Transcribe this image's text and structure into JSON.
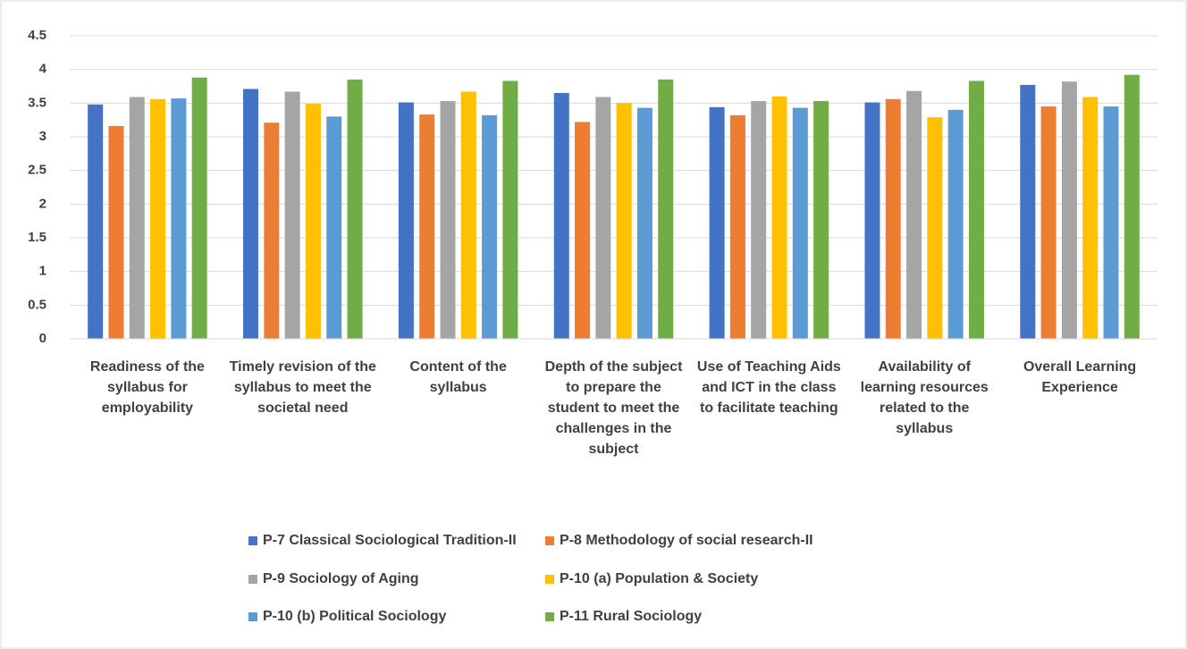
{
  "chart_data": {
    "type": "bar",
    "categories": [
      "Readiness of the syllabus for employability",
      "Timely revision of the syllabus to meet the societal need",
      "Content of the syllabus",
      "Depth of the subject to prepare the student to meet the challenges in the subject",
      "Use of Teaching Aids and ICT in the class to facilitate teaching",
      "Availability of learning resources related to the syllabus",
      "Overall Learning Experience"
    ],
    "series": [
      {
        "name": "P-7 Classical Sociological Tradition-II",
        "color": "#4472c4",
        "values": [
          3.48,
          3.71,
          3.51,
          3.65,
          3.44,
          3.51,
          3.77
        ]
      },
      {
        "name": "P-8 Methodology of social research-II",
        "color": "#ed7d31",
        "values": [
          3.16,
          3.21,
          3.33,
          3.22,
          3.32,
          3.56,
          3.45
        ]
      },
      {
        "name": "P-9 Sociology of Aging",
        "color": "#a5a5a5",
        "values": [
          3.59,
          3.67,
          3.53,
          3.59,
          3.53,
          3.68,
          3.82
        ]
      },
      {
        "name": "P-10 (a) Population & Society",
        "color": "#ffc000",
        "values": [
          3.56,
          3.49,
          3.67,
          3.5,
          3.6,
          3.29,
          3.59
        ]
      },
      {
        "name": "P-10 (b) Political Sociology",
        "color": "#5b9bd5",
        "values": [
          3.57,
          3.3,
          3.32,
          3.43,
          3.43,
          3.4,
          3.45
        ]
      },
      {
        "name": "P-11 Rural Sociology",
        "color": "#70ad47",
        "values": [
          3.88,
          3.85,
          3.83,
          3.85,
          3.53,
          3.83,
          3.92
        ]
      }
    ],
    "ylim": [
      0,
      4.5
    ],
    "yticks": [
      0,
      0.5,
      1,
      1.5,
      2,
      2.5,
      3,
      3.5,
      4,
      4.5
    ],
    "grid": true,
    "legend": "bottom"
  }
}
